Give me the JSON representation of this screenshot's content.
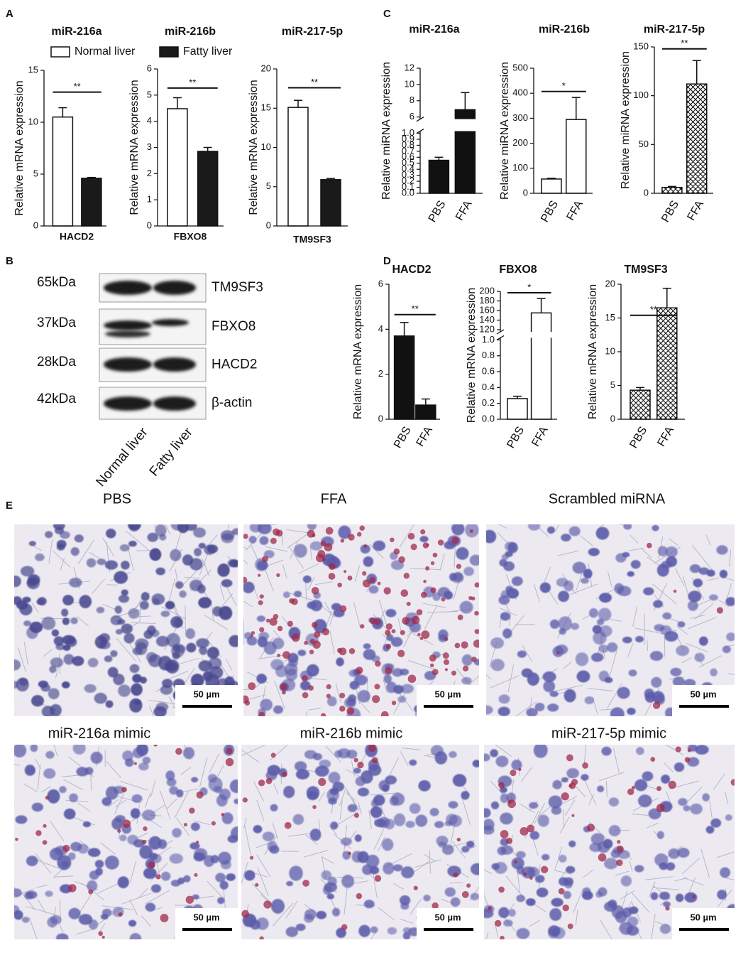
{
  "panel_labels": [
    "A",
    "B",
    "C",
    "D",
    "E"
  ],
  "chart_data": [
    {
      "type": "bar",
      "title": "miR-216a",
      "xlabel": "HACD2",
      "ylabel": "Relative mRNA expression",
      "ylim": [
        0,
        15
      ],
      "yticks": [
        0,
        5,
        10,
        15
      ],
      "legend": "top",
      "series": [
        {
          "name": "Normal liver",
          "color": "#ffffff",
          "values": [
            10.5
          ],
          "errors": [
            0.9
          ]
        },
        {
          "name": "Fatty liver",
          "color": "#1a1a1a",
          "values": [
            4.6
          ],
          "errors": [
            0.08
          ]
        }
      ],
      "significance": {
        "text": "**",
        "y": 12.9
      }
    },
    {
      "type": "bar",
      "title": "miR-216b",
      "xlabel": "FBXO8",
      "ylabel": "Relative mRNA expression",
      "ylim": [
        0,
        6
      ],
      "yticks": [
        0,
        1,
        2,
        3,
        4,
        5,
        6
      ],
      "series": [
        {
          "color": "#ffffff",
          "values": [
            4.48
          ],
          "errors": [
            0.42
          ]
        },
        {
          "color": "#1a1a1a",
          "values": [
            2.85
          ],
          "errors": [
            0.15
          ]
        }
      ],
      "significance": {
        "text": "**",
        "y": 5.27
      }
    },
    {
      "type": "bar",
      "title": "miR-217-5p",
      "xlabel": "TM9SF3",
      "ylabel": "Relative mRNA expression",
      "ylim": [
        0,
        20
      ],
      "yticks": [
        0,
        5,
        10,
        15,
        20
      ],
      "series": [
        {
          "color": "#ffffff",
          "values": [
            15.1
          ],
          "errors": [
            0.9
          ]
        },
        {
          "color": "#1a1a1a",
          "values": [
            5.9
          ],
          "errors": [
            0.15
          ]
        }
      ],
      "significance": {
        "text": "**",
        "y": 17.6
      }
    },
    {
      "type": "bar",
      "title": "miR-216a",
      "ylabel": "Relative miRNA expression",
      "categories": [
        "PBS",
        "FFA"
      ],
      "values": [
        0.55,
        6.9
      ],
      "errors": [
        0.05,
        2.1
      ],
      "color": "#111111",
      "ylim": [
        0,
        12
      ],
      "ybreak": [
        1,
        6
      ],
      "yticks": [
        {
          "value": 0,
          "label": "0.0"
        },
        0.1,
        0.2,
        0.3,
        0.4,
        0.5,
        0.6,
        0.7,
        0.8,
        0.9,
        {
          "value": 1,
          "label": "1.0"
        },
        6,
        8,
        10,
        12
      ]
    },
    {
      "type": "bar",
      "title": "miR-216b",
      "ylabel": "Relative miRNA expression",
      "categories": [
        "PBS",
        "FFA"
      ],
      "values": [
        57,
        295
      ],
      "errors": [
        3,
        88
      ],
      "color": "#ffffff",
      "ylim": [
        0,
        500
      ],
      "yticks": [
        0,
        100,
        200,
        300,
        400,
        500
      ],
      "significance": {
        "text": "*",
        "y": 407
      }
    },
    {
      "type": "bar",
      "title": "miR-217-5p",
      "ylabel": "Relative miRNA expression",
      "categories": [
        "PBS",
        "FFA"
      ],
      "values": [
        6,
        112
      ],
      "errors": [
        1,
        24
      ],
      "color": "#ffffff",
      "fill": "crosshatch",
      "ylim": [
        0,
        150
      ],
      "yticks": [
        0,
        50,
        100,
        150
      ],
      "significance": {
        "text": "**",
        "y": 148
      }
    },
    {
      "type": "bar",
      "title": "HACD2",
      "ylabel": "Relative mRNA expression",
      "categories": [
        "PBS",
        "FFA"
      ],
      "values": [
        3.7,
        0.63
      ],
      "errors": [
        0.6,
        0.27
      ],
      "color": "#111111",
      "ylim": [
        0,
        6
      ],
      "yticks": [
        0,
        2,
        4,
        6
      ],
      "significance": {
        "text": "**",
        "y": 4.65
      }
    },
    {
      "type": "bar",
      "title": "FBXO8",
      "ylabel": "Relative mRNA expression",
      "categories": [
        "PBS",
        "FFA"
      ],
      "values": [
        0.26,
        155
      ],
      "errors": [
        0.03,
        30
      ],
      "color": "#ffffff",
      "ylim": [
        0,
        200
      ],
      "ybreak": [
        1,
        120
      ],
      "yticks": [
        {
          "value": 0,
          "label": "0.0"
        },
        0.2,
        0.4,
        0.6,
        0.8,
        {
          "value": 1,
          "label": "1.0"
        },
        120,
        140,
        160,
        180,
        200
      ],
      "significance": {
        "text": "*",
        "y": 197
      }
    },
    {
      "type": "bar",
      "title": "TM9SF3",
      "ylabel": "Relative mRNA expression",
      "categories": [
        "PBS",
        "FFA"
      ],
      "values": [
        4.3,
        16.5
      ],
      "errors": [
        0.4,
        2.9
      ],
      "color": "#ffffff",
      "fill": "crosshatch",
      "ylim": [
        0,
        20
      ],
      "yticks": [
        0,
        5,
        10,
        15,
        20
      ],
      "significance": {
        "text": "**",
        "y": 15.4
      }
    }
  ],
  "blot": {
    "markers": [
      "65kDa",
      "37kDa",
      "28kDa",
      "42kDa"
    ],
    "proteins": [
      "TM9SF3",
      "FBXO8",
      "HACD2",
      "β-actin"
    ],
    "lanes": [
      "Normal liver",
      "Fatty liver"
    ]
  },
  "micrographs": [
    {
      "label": "PBS",
      "scale_bar": "50 µm"
    },
    {
      "label": "FFA",
      "scale_bar": "50 µm"
    },
    {
      "label": "Scrambled miRNA",
      "scale_bar": "50 µm"
    },
    {
      "label": "miR-216a mimic",
      "scale_bar": "50 µm"
    },
    {
      "label": "miR-216b mimic",
      "scale_bar": "50 µm"
    },
    {
      "label": "miR-217-5p mimic",
      "scale_bar": "50 µm"
    }
  ]
}
